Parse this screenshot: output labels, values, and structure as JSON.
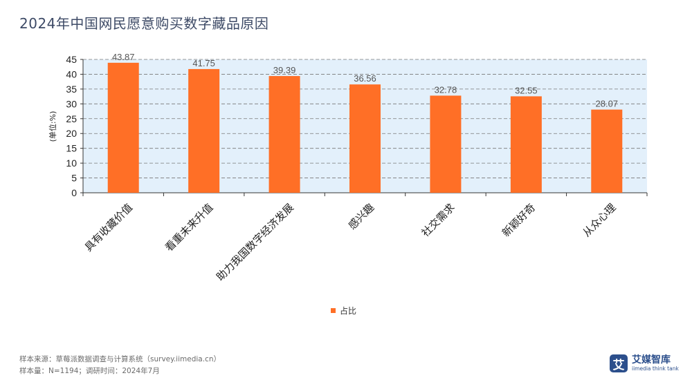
{
  "title": "2024年中国网民愿意购买数字藏品原因",
  "legend_label": "占比",
  "footer": {
    "source": "样本来源：草莓派数据调查与计算系统（survey.iimedia.cn）",
    "sample": "样本量：N=1194；调研时间：2024年7月"
  },
  "logo": {
    "mark": "艾",
    "name": "艾媒智库",
    "tagline": "iimedia think tank"
  },
  "colors": {
    "bar": "#ff6f26",
    "plot_bg": "#e3f0fb",
    "grid": "#777777",
    "title": "#3d4a66"
  },
  "chart_data": {
    "type": "bar",
    "title": "2024年中国网民愿意购买数字藏品原因",
    "ylabel": "(单位:%)",
    "xlabel": "",
    "ylim": [
      0,
      45
    ],
    "yticks": [
      0,
      5,
      10,
      15,
      20,
      25,
      30,
      35,
      40,
      45
    ],
    "grid": true,
    "legend_position": "bottom",
    "categories": [
      "具有收藏价值",
      "看重未来升值",
      "助力我国数字经济发展",
      "感兴趣",
      "社交需求",
      "新颖好奇",
      "从众心理"
    ],
    "series": [
      {
        "name": "占比",
        "values": [
          43.87,
          41.75,
          39.39,
          36.56,
          32.78,
          32.55,
          28.07
        ],
        "labels": [
          "43.87",
          "41.75",
          "39.39",
          "36.56",
          "32.78",
          "32.55",
          "28.07"
        ]
      }
    ]
  }
}
